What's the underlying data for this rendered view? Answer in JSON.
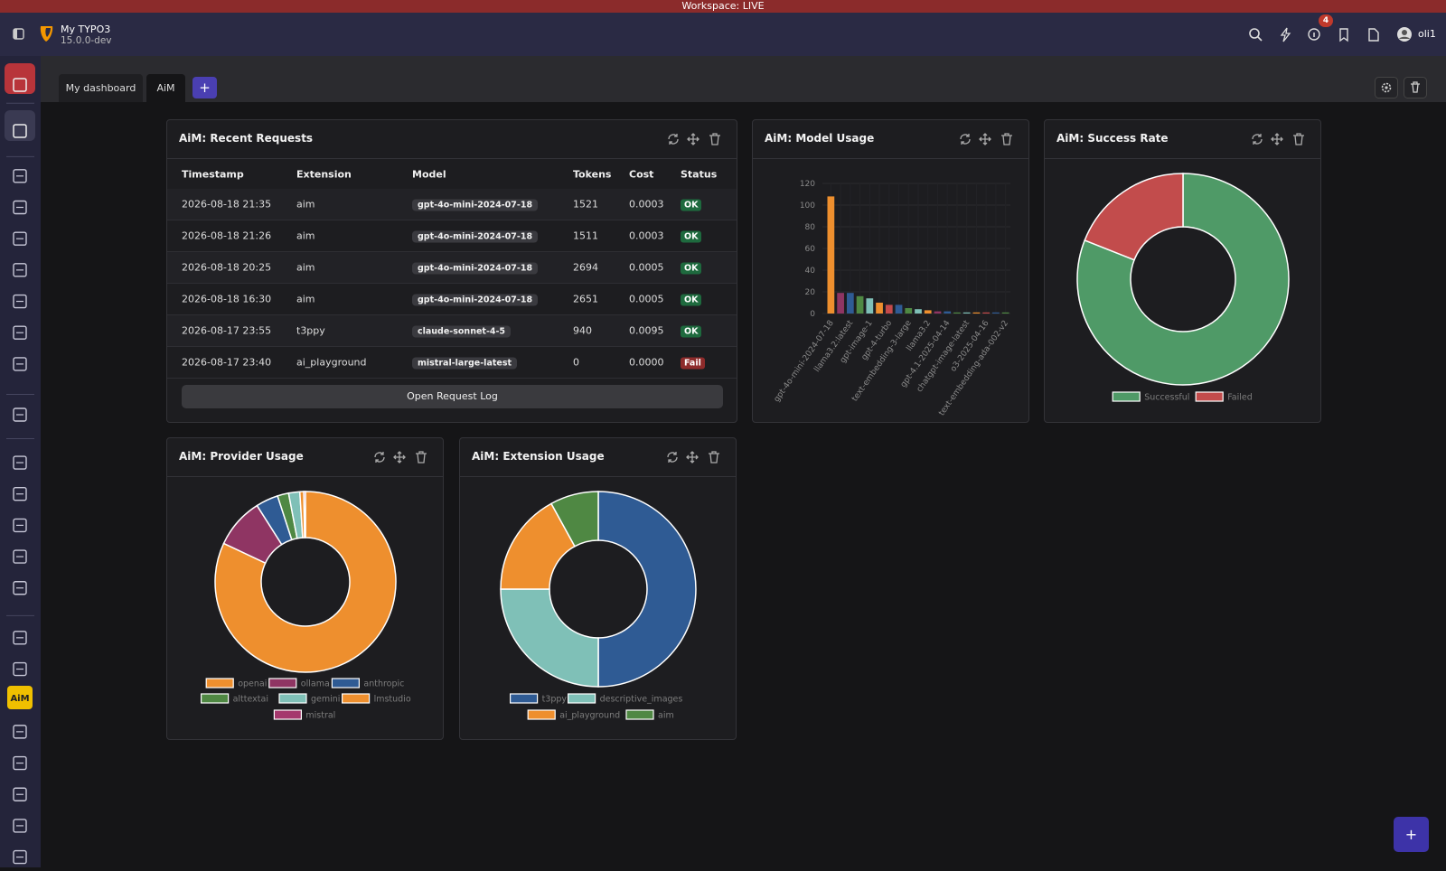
{
  "workspace": "Workspace: LIVE",
  "header": {
    "site_name": "My TYPO3",
    "version": "15.0.0-dev",
    "notification_count": "4",
    "user": "oli1"
  },
  "sidebar_active_label": "AiM",
  "tabs": [
    "My dashboard",
    "AiM"
  ],
  "active_tab": 1,
  "add_tab": "+",
  "recent_requests": {
    "title": "AiM: Recent Requests",
    "columns": [
      "Timestamp",
      "Extension",
      "Model",
      "Tokens",
      "Cost",
      "Status"
    ],
    "rows": [
      [
        "2026-08-18 21:35",
        "aim",
        "gpt-4o-mini-2024-07-18",
        1521,
        "0.0003",
        "OK"
      ],
      [
        "2026-08-18 21:26",
        "aim",
        "gpt-4o-mini-2024-07-18",
        1511,
        "0.0003",
        "OK"
      ],
      [
        "2026-08-18 20:25",
        "aim",
        "gpt-4o-mini-2024-07-18",
        2694,
        "0.0005",
        "OK"
      ],
      [
        "2026-08-18 16:30",
        "aim",
        "gpt-4o-mini-2024-07-18",
        2651,
        "0.0005",
        "OK"
      ],
      [
        "2026-08-17 23:55",
        "t3ppy",
        "claude-sonnet-4-5",
        940,
        "0.0095",
        "OK"
      ],
      [
        "2026-08-17 23:40",
        "ai_playground",
        "mistral-large-latest",
        0,
        "0.0000",
        "Fail"
      ]
    ],
    "status_colors": [
      "#1e6a3e",
      "#1e6a3e",
      "#1e6a3e",
      "#1e6a3e",
      "#1e6a3e",
      "#8e2b2b"
    ],
    "button": "Open Request Log"
  },
  "model_usage": {
    "title": "AiM: Model Usage",
    "chart_data": {
      "type": "bar",
      "categories": [
        "gpt-4o-mini-2024-07-18",
        null,
        "llama3.2:latest",
        null,
        "gpt-image-1",
        null,
        "gpt-4-turbo",
        null,
        "text-embedding-3-large",
        null,
        "llama3.2",
        null,
        "gpt-4.1-2025-04-14",
        null,
        "chatgpt-image-latest",
        null,
        "o3-2025-04-16",
        null,
        "text-embedding-ada-002-v2"
      ],
      "values": [
        108,
        19,
        19,
        16,
        14,
        10,
        8,
        8,
        5,
        4,
        3,
        2,
        2,
        1,
        1,
        1,
        1,
        1,
        1
      ],
      "colors": [
        "#ee8f2e",
        "#8f3563",
        "#2f5b94",
        "#4f8843",
        "#7fc0b7",
        "#ee8f2e",
        "#c44a4a",
        "#2f5b94",
        "#4f8843",
        "#7fc0b7",
        "#ee8f2e",
        "#8f3563",
        "#2f5b94",
        "#4f8843",
        "#7fc0b7",
        "#ee8f2e",
        "#c44a4a",
        "#2f5b94",
        "#4f8843"
      ],
      "ylim": [
        0,
        120
      ],
      "yticks": [
        0,
        20,
        40,
        60,
        80,
        100,
        120
      ],
      "grid": true
    }
  },
  "success_rate": {
    "title": "AiM: Success Rate",
    "chart_data": {
      "type": "doughnut",
      "categories": [
        "Successful",
        "Failed"
      ],
      "values": [
        81,
        19
      ],
      "colors": [
        "#4f9a67",
        "#c24c4c"
      ]
    }
  },
  "provider_usage": {
    "title": "AiM: Provider Usage",
    "chart_data": {
      "type": "doughnut",
      "categories": [
        "openai",
        "ollama",
        "anthropic",
        "alttextai",
        "gemini",
        "lmstudio",
        "mistral"
      ],
      "values": [
        82,
        9,
        4,
        2,
        2,
        0.7,
        0.3
      ],
      "colors": [
        "#ee8f2e",
        "#8f3563",
        "#2f5b94",
        "#4f8843",
        "#7fc0b7",
        "#ee8f2e",
        "#a5386d"
      ]
    }
  },
  "extension_usage": {
    "title": "AiM: Extension Usage",
    "chart_data": {
      "type": "doughnut",
      "categories": [
        "t3ppy",
        "descriptive_images",
        "ai_playground",
        "aim"
      ],
      "values": [
        50,
        25,
        17,
        8
      ],
      "colors": [
        "#2f5b94",
        "#7fc0b7",
        "#ee8f2e",
        "#4f8843"
      ]
    }
  }
}
